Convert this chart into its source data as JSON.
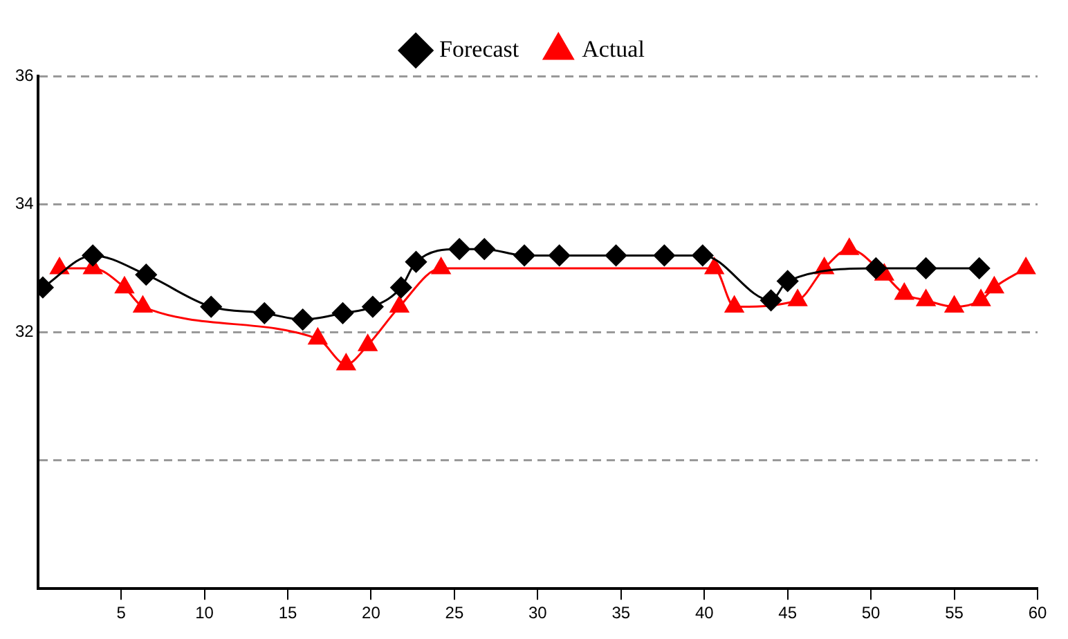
{
  "chart_data": {
    "type": "line",
    "legend": "top",
    "grid": "y",
    "line_style": "solid",
    "xlim": [
      0,
      60
    ],
    "xticks": [
      5,
      10,
      15,
      20,
      25,
      30,
      35,
      40,
      45,
      50,
      55,
      60
    ],
    "ylim": [
      28,
      36
    ],
    "yticks": [
      {
        "value": 30,
        "label": null
      },
      32,
      34,
      36
    ],
    "series": [
      {
        "name": "Forecast",
        "color": "#000000",
        "marker": "diamond",
        "x": [
          0.3,
          3.3,
          6.5,
          10.4,
          13.6,
          15.9,
          18.3,
          20.1,
          21.8,
          22.7,
          25.3,
          26.8,
          29.2,
          31.3,
          34.7,
          37.6,
          39.9,
          44.0,
          45.0,
          50.3,
          53.3,
          56.5
        ],
        "values": [
          32.7,
          33.2,
          32.9,
          32.4,
          32.3,
          32.2,
          32.3,
          32.4,
          32.7,
          33.1,
          33.3,
          33.3,
          33.2,
          33.2,
          33.2,
          33.2,
          33.2,
          32.5,
          32.8,
          33.0,
          33.0,
          33.0
        ]
      },
      {
        "name": "Actual",
        "color": "#ff0000",
        "marker": "triangle",
        "x": [
          1.3,
          3.3,
          5.2,
          6.3,
          16.8,
          18.5,
          19.8,
          21.7,
          24.2,
          40.6,
          41.8,
          45.6,
          47.2,
          48.7,
          50.8,
          52.0,
          53.3,
          55.0,
          56.6,
          57.4,
          59.3
        ],
        "values": [
          33.0,
          33.0,
          32.7,
          32.4,
          31.9,
          31.5,
          31.8,
          32.4,
          33.0,
          33.0,
          32.4,
          32.5,
          33.0,
          33.3,
          32.9,
          32.6,
          32.5,
          32.4,
          32.5,
          32.7,
          33.0
        ]
      }
    ]
  }
}
